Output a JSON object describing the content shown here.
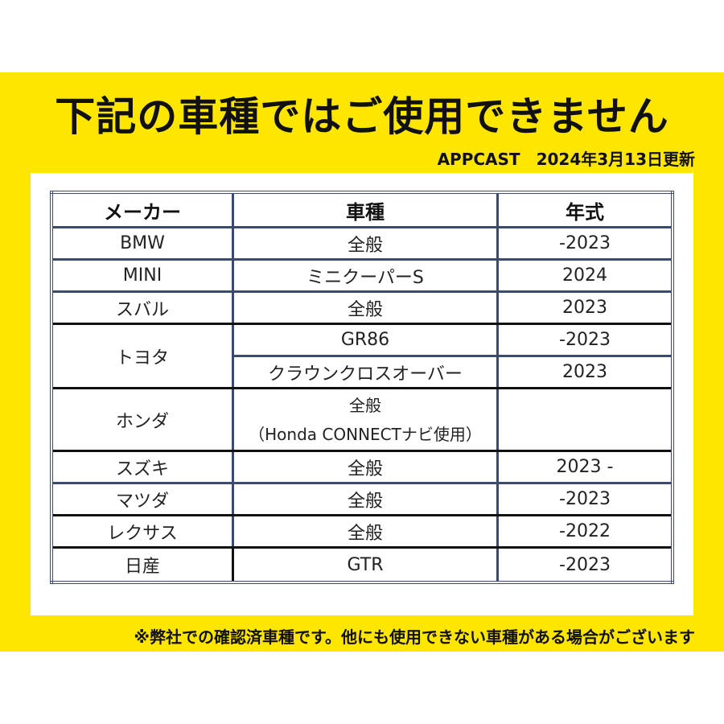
{
  "title": "下記の車種ではご使用できません",
  "subtitle": "APPCAST　2024年3月13日更新",
  "table": {
    "headers": [
      "メーカー",
      "車種",
      "年式"
    ],
    "rows": [
      {
        "maker": "BMW",
        "model": "全般",
        "year": "-2023"
      },
      {
        "maker": "MINI",
        "model": "ミニクーパーS",
        "year": "2024"
      },
      {
        "maker": "スバル",
        "model": "全般",
        "year": "2023"
      },
      {
        "maker": "トヨタ",
        "model": "GR86",
        "year": "-2023"
      },
      {
        "maker": "",
        "model": "クラウンクロスオーバー",
        "year": "2023"
      },
      {
        "maker": "ホンダ",
        "model": "全般",
        "model_note": "（Honda CONNECTナビ使用）",
        "year": ""
      },
      {
        "maker": "スズキ",
        "model": "全般",
        "year": "2023 -"
      },
      {
        "maker": "マツダ",
        "model": "全般",
        "year": "-2023"
      },
      {
        "maker": "レクサス",
        "model": "全般",
        "year": "-2022"
      },
      {
        "maker": "日産",
        "model": "GTR",
        "year": "-2023"
      }
    ]
  },
  "footnote": "※弊社での確認済車種です。他にも使用できない車種がある場合がございます",
  "colors": {
    "background_band": "#ffe600",
    "table_border": "#3b4a6e"
  }
}
